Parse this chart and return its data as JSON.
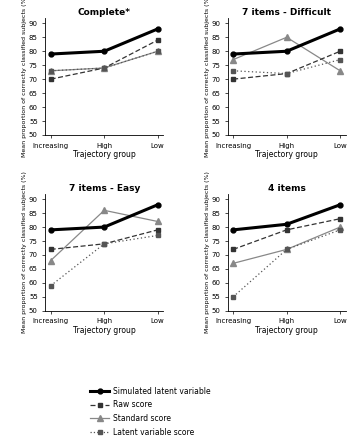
{
  "subplots": [
    {
      "title": "Complete*",
      "simulated": [
        79,
        80,
        88
      ],
      "raw": [
        70,
        74,
        84
      ],
      "standard": [
        73,
        74,
        80
      ],
      "latent": [
        73,
        74,
        80
      ]
    },
    {
      "title": "7 items - Difficult",
      "simulated": [
        79,
        80,
        88
      ],
      "raw": [
        70,
        72,
        80
      ],
      "standard": [
        77,
        85,
        73
      ],
      "latent": [
        73,
        72,
        77
      ]
    },
    {
      "title": "7 items - Easy",
      "simulated": [
        79,
        80,
        88
      ],
      "raw": [
        72,
        74,
        79
      ],
      "standard": [
        68,
        86,
        82
      ],
      "latent": [
        59,
        74,
        77
      ]
    },
    {
      "title": "4 items",
      "simulated": [
        79,
        81,
        88
      ],
      "raw": [
        72,
        79,
        83
      ],
      "standard": [
        67,
        72,
        80
      ],
      "latent": [
        55,
        72,
        79
      ]
    }
  ],
  "x_labels": [
    "Increasing",
    "High",
    "Low"
  ],
  "ylabel": "Mean proportion of correctly classified subjects (%)",
  "xlabel": "Trajectory group",
  "ylim": [
    50,
    92
  ],
  "yticks": [
    50,
    55,
    60,
    65,
    70,
    75,
    80,
    85,
    90
  ],
  "legend_labels": [
    "Simulated latent variable",
    "Raw score",
    "Standard score",
    "Latent variable score"
  ]
}
